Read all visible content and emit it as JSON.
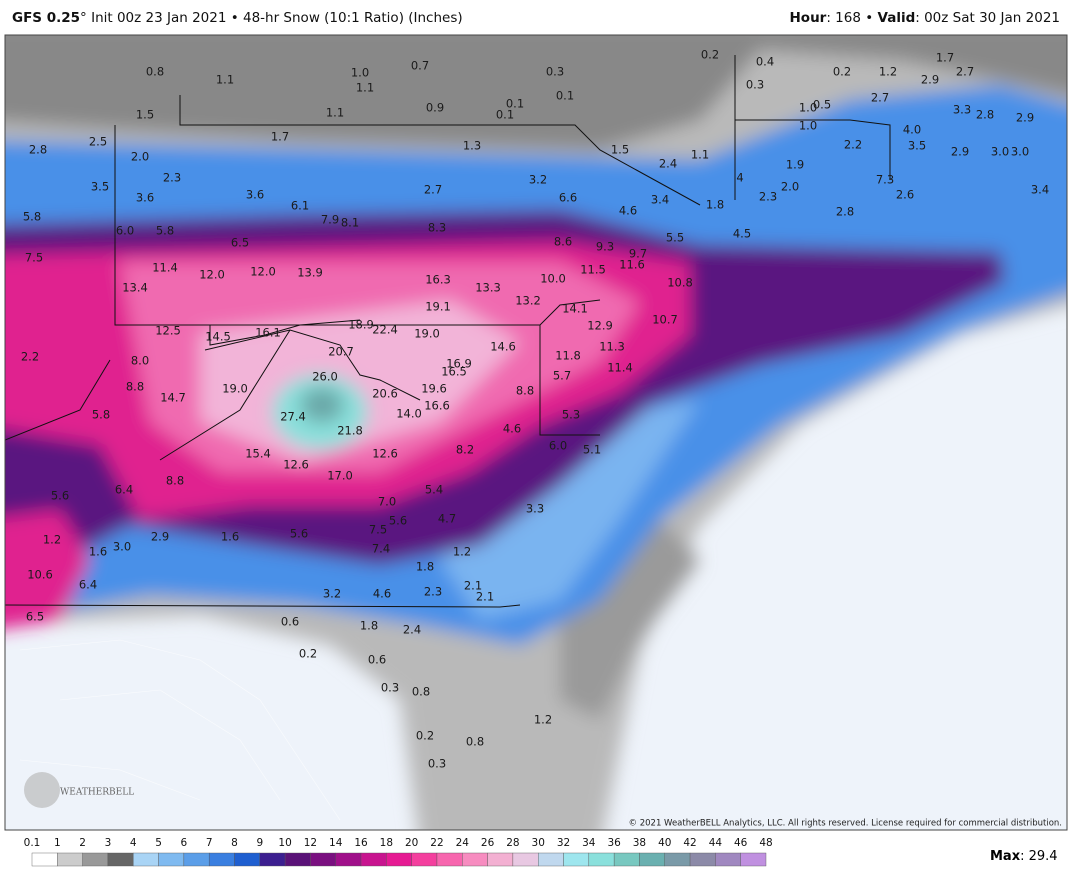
{
  "header": {
    "model": "GFS 0.25",
    "run_info": "° Init 00z 23 Jan 2021 • 48-hr Snow (10:1 Ratio) (Inches)",
    "hour_key": "Hour",
    "hour_value": ": 168 • ",
    "valid_key": "Valid",
    "valid_value": ": 00z Sat 30 Jan 2021"
  },
  "copyright": "© 2021 WeatherBELL Analytics, LLC. All rights reserved. License required for commercial distribution.",
  "logo": "WEATHERBELL",
  "max": {
    "key": "Max",
    "value": ": 29.4"
  },
  "colorbar": {
    "ticks": [
      0.1,
      1,
      2,
      3,
      4,
      5,
      6,
      7,
      8,
      9,
      10,
      12,
      14,
      16,
      18,
      20,
      22,
      24,
      26,
      28,
      30,
      32,
      34,
      36,
      38,
      40,
      42,
      44,
      46,
      48
    ],
    "colors": [
      "#ffffff",
      "#cccccc",
      "#999999",
      "#666666",
      "#a9d4f5",
      "#7fbaf0",
      "#5b9ee8",
      "#3a7fe0",
      "#1f5fd0",
      "#3c1f90",
      "#5a1278",
      "#7a0f80",
      "#a00f8a",
      "#c8148f",
      "#e61a93",
      "#f43f9e",
      "#f766ae",
      "#f78cc0",
      "#f3b0d2",
      "#e8c8e2",
      "#c0d8ee",
      "#9ee6ee",
      "#8ae0dc",
      "#78c8c0",
      "#6ab0b0",
      "#7a9aa8",
      "#8c8aa8",
      "#a088c0",
      "#c090e0"
    ]
  },
  "map_labels": [
    "0.8",
    "1.1",
    "1.0",
    "0.7",
    "1.1",
    "0.3",
    "0.1",
    "0.9",
    "0.1",
    "0.1",
    "1.1",
    "1.5",
    "0.2",
    "0.4",
    "0.3",
    "0.2",
    "1.2",
    "2.9",
    "2.7",
    "1.7",
    "2.7",
    "1.0",
    "0.5",
    "1.0",
    "3.3",
    "2.8",
    "2.9",
    "4.0",
    "2.2",
    "3.5",
    "2.9",
    "3.0",
    "3.0",
    "1.9",
    "2.0",
    "2.3",
    "7.3",
    "2.6",
    "3.4",
    "2.8",
    "1.7",
    "1.3",
    "1.5",
    "1.1",
    "2.4",
    "4",
    "2.5",
    "2.8",
    "2.0",
    "2.3",
    "3.2",
    "3.5",
    "3.6",
    "3.6",
    "2.7",
    "6.6",
    "4.6",
    "3.4",
    "1.8",
    "6.1",
    "7.9",
    "8.1",
    "8.3",
    "5.8",
    "6.0",
    "5.8",
    "6.5",
    "8.6",
    "9.3",
    "9.7",
    "5.5",
    "4.5",
    "7.5",
    "11.4",
    "12.0",
    "12.0",
    "13.9",
    "16.3",
    "13.3",
    "10.0",
    "11.5",
    "11.6",
    "10.8",
    "13.4",
    "19.1",
    "13.2",
    "14.1",
    "12.9",
    "10.7",
    "12.5",
    "14.5",
    "16.1",
    "18.9",
    "22.4",
    "19.0",
    "2.2",
    "8.0",
    "20.7",
    "14.6",
    "11.8",
    "11.3",
    "11.4",
    "16.9",
    "16.5",
    "26.0",
    "5.7",
    "8.8",
    "14.7",
    "19.0",
    "20.6",
    "19.6",
    "8.8",
    "16.6",
    "14.0",
    "5.8",
    "27.4",
    "21.8",
    "5.3",
    "4.6",
    "6.0",
    "5.1",
    "15.4",
    "12.6",
    "8.2",
    "12.6",
    "17.0",
    "8.8",
    "5.4",
    "5.6",
    "6.4",
    "7.0",
    "5.6",
    "4.7",
    "3.3",
    "7.5",
    "1.2",
    "2.9",
    "1.6",
    "5.6",
    "7.4",
    "1.6",
    "3.0",
    "1.2",
    "10.6",
    "6.4",
    "1.8",
    "2.1",
    "3.2",
    "4.6",
    "2.3",
    "2.1",
    "6.5",
    "0.6",
    "1.8",
    "2.4",
    "0.2",
    "0.6",
    "0.3",
    "0.8",
    "1.2",
    "0.2",
    "0.8",
    "0.3"
  ]
}
